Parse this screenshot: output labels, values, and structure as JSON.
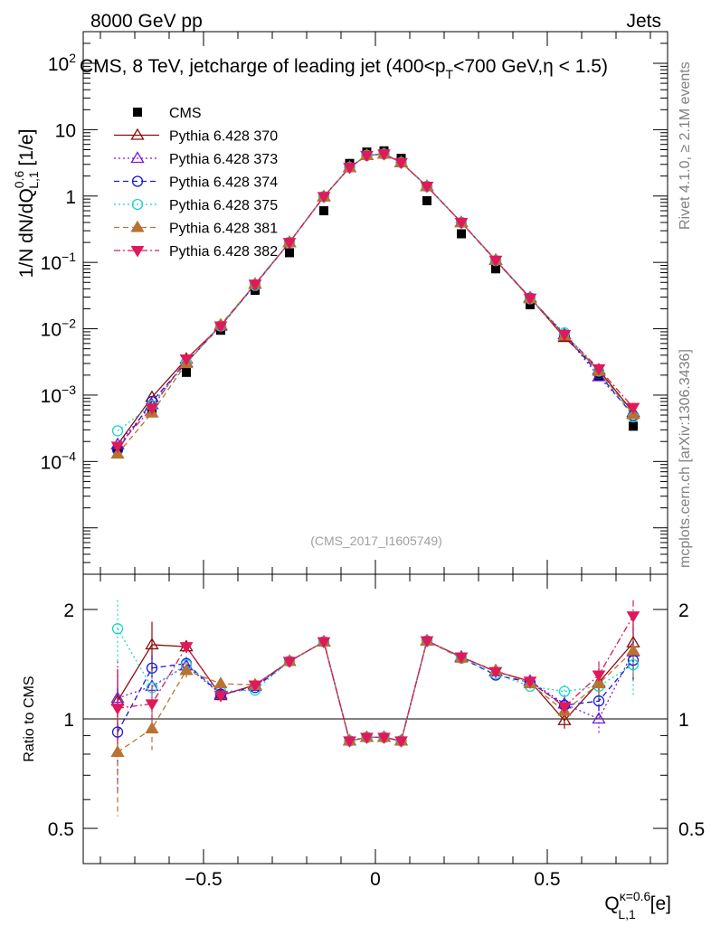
{
  "header": {
    "energy": "8000 GeV pp",
    "process": "Jets",
    "title": "CMS, 8 TeV, jetcharge of leading jet (400<p_T<700 GeV,η < 1.5)",
    "analysis_id": "(CMS_2017_I1605749)",
    "side_rivet": "Rivet 4.1.0, ≥ 2.1M events",
    "side_mcplots": "mcplots.cern.ch [arXiv:1306.3436]"
  },
  "colors": {
    "CMS": "#000000",
    "p370": "#8b0d0d",
    "p373": "#7b18d6",
    "p374": "#1a1ad2",
    "p375": "#1ad6c4",
    "p381": "#b87333",
    "p382": "#e0195a"
  },
  "chart_data": [
    {
      "type": "scatter",
      "panel": "main",
      "yscale": "log",
      "ylabel": "1/N dN/dQ^{0.6}_{L,1} [1/e]",
      "xlabel": "",
      "xlim": [
        -0.85,
        0.85
      ],
      "ylim": [
        2e-06,
        300
      ],
      "yticks": [
        {
          "value": 0.0001,
          "label": "10^-4"
        },
        {
          "value": 0.001,
          "label": "10^-3"
        },
        {
          "value": 0.01,
          "label": "10^-2"
        },
        {
          "value": 0.1,
          "label": "10^-1"
        },
        {
          "value": 1,
          "label": "1"
        },
        {
          "value": 10,
          "label": "10"
        },
        {
          "value": 100,
          "label": "10^2"
        }
      ],
      "x": [
        -0.75,
        -0.65,
        -0.55,
        -0.45,
        -0.35,
        -0.25,
        -0.15,
        -0.075,
        -0.025,
        0.025,
        0.075,
        0.15,
        0.25,
        0.35,
        0.45,
        0.55,
        0.65,
        0.75
      ],
      "legend_position": "top-left",
      "series": [
        {
          "name": "CMS",
          "key": "CMS",
          "marker": "square",
          "line": "none",
          "values": [
            0.00016,
            0.00058,
            0.0022,
            0.0095,
            0.038,
            0.14,
            0.6,
            3.1,
            4.6,
            4.8,
            3.7,
            0.85,
            0.27,
            0.08,
            0.023,
            0.0075,
            0.0019,
            0.00034
          ]
        },
        {
          "name": "Pythia 6.428 370",
          "key": "p370",
          "marker": "triangle-open",
          "line": "solid",
          "values": [
            0.00018,
            0.00093,
            0.0035,
            0.011,
            0.047,
            0.2,
            0.98,
            2.7,
            4.1,
            4.3,
            3.2,
            1.4,
            0.4,
            0.108,
            0.0293,
            0.0074,
            0.0024,
            0.00055
          ]
        },
        {
          "name": "Pythia 6.428 373",
          "key": "p373",
          "marker": "triangle-open",
          "line": "dotted",
          "values": [
            0.00018,
            0.00072,
            0.0031,
            0.011,
            0.047,
            0.2,
            0.98,
            2.7,
            4.1,
            4.3,
            3.2,
            1.4,
            0.4,
            0.108,
            0.0292,
            0.0082,
            0.0019,
            0.00052
          ]
        },
        {
          "name": "Pythia 6.428 374",
          "key": "p374",
          "marker": "circle-open",
          "line": "dashed",
          "values": [
            0.00015,
            0.0008,
            0.0031,
            0.011,
            0.046,
            0.2,
            0.98,
            2.7,
            4.1,
            4.3,
            3.2,
            1.4,
            0.4,
            0.106,
            0.029,
            0.0081,
            0.0021,
            0.00049
          ]
        },
        {
          "name": "Pythia 6.428 375",
          "key": "p375",
          "marker": "circle-open",
          "line": "dotted",
          "values": [
            0.00029,
            0.0007,
            0.0031,
            0.011,
            0.045,
            0.2,
            0.98,
            2.7,
            4.1,
            4.3,
            3.2,
            1.4,
            0.4,
            0.107,
            0.0283,
            0.0087,
            0.0023,
            0.00047
          ]
        },
        {
          "name": "Pythia 6.428 381",
          "key": "p381",
          "marker": "triangle-filled",
          "line": "dashed",
          "values": [
            0.00013,
            0.00054,
            0.003,
            0.0115,
            0.047,
            0.2,
            0.98,
            2.7,
            4.1,
            4.3,
            3.2,
            1.4,
            0.4,
            0.108,
            0.0285,
            0.0078,
            0.0023,
            0.00051
          ]
        },
        {
          "name": "Pythia 6.428 382",
          "key": "p382",
          "marker": "triangle-down-filled",
          "line": "dashdot",
          "values": [
            0.00017,
            0.00064,
            0.0035,
            0.011,
            0.047,
            0.2,
            0.98,
            2.7,
            4.1,
            4.3,
            3.2,
            1.4,
            0.4,
            0.108,
            0.029,
            0.0082,
            0.0025,
            0.00065
          ]
        }
      ]
    },
    {
      "type": "line",
      "panel": "ratio",
      "yscale": "log",
      "ylabel": "Ratio to CMS",
      "xlabel": "Q^{κ=0.6}_{L,1} [e]",
      "xlim": [
        -0.85,
        0.85
      ],
      "ylim": [
        0.4,
        2.5
      ],
      "xticks": [
        {
          "value": -0.5,
          "label": "−0.5"
        },
        {
          "value": 0,
          "label": "0"
        },
        {
          "value": 0.5,
          "label": "0.5"
        }
      ],
      "yticks": [
        {
          "value": 0.5,
          "label": "0.5"
        },
        {
          "value": 1,
          "label": "1"
        },
        {
          "value": 2,
          "label": "2"
        }
      ],
      "reference_line": 1,
      "x": [
        -0.75,
        -0.65,
        -0.55,
        -0.45,
        -0.35,
        -0.25,
        -0.15,
        -0.075,
        -0.025,
        0.025,
        0.075,
        0.15,
        0.25,
        0.35,
        0.45,
        0.55,
        0.65,
        0.75
      ],
      "series": [
        {
          "name": "Pythia 6.428 370",
          "key": "p370",
          "marker": "triangle-open",
          "line": "solid",
          "values": [
            1.12,
            1.6,
            1.58,
            1.16,
            1.24,
            1.44,
            1.63,
            0.87,
            0.89,
            0.89,
            0.87,
            1.64,
            1.48,
            1.35,
            1.27,
            0.99,
            1.26,
            1.62
          ],
          "err": [
            0.25,
            0.25,
            0.06,
            0.03,
            0.02,
            0.02,
            0.02,
            0.01,
            0.01,
            0.01,
            0.01,
            0.02,
            0.02,
            0.02,
            0.03,
            0.05,
            0.12,
            0.25
          ]
        },
        {
          "name": "Pythia 6.428 373",
          "key": "p373",
          "marker": "triangle-open",
          "line": "dotted",
          "values": [
            1.14,
            1.23,
            1.4,
            1.17,
            1.23,
            1.44,
            1.63,
            0.87,
            0.89,
            0.89,
            0.87,
            1.64,
            1.48,
            1.35,
            1.27,
            1.1,
            1.0,
            1.53
          ],
          "err": [
            0.3,
            0.12,
            0.06,
            0.03,
            0.02,
            0.02,
            0.02,
            0.01,
            0.01,
            0.01,
            0.01,
            0.02,
            0.02,
            0.02,
            0.03,
            0.05,
            0.1,
            0.25
          ]
        },
        {
          "name": "Pythia 6.428 374",
          "key": "p374",
          "marker": "circle-open",
          "line": "dashed",
          "values": [
            0.92,
            1.38,
            1.42,
            1.17,
            1.22,
            1.44,
            1.63,
            0.87,
            0.89,
            0.89,
            0.87,
            1.64,
            1.47,
            1.32,
            1.26,
            1.09,
            1.12,
            1.45
          ],
          "err": [
            0.3,
            0.12,
            0.06,
            0.03,
            0.02,
            0.02,
            0.02,
            0.01,
            0.01,
            0.01,
            0.01,
            0.02,
            0.02,
            0.02,
            0.03,
            0.05,
            0.1,
            0.2
          ]
        },
        {
          "name": "Pythia 6.428 375",
          "key": "p375",
          "marker": "circle-open",
          "line": "dotted",
          "values": [
            1.77,
            1.22,
            1.41,
            1.19,
            1.2,
            1.44,
            1.63,
            0.87,
            0.89,
            0.89,
            0.87,
            1.64,
            1.47,
            1.33,
            1.23,
            1.19,
            1.23,
            1.41
          ],
          "err": [
            0.35,
            0.12,
            0.06,
            0.03,
            0.02,
            0.02,
            0.02,
            0.01,
            0.01,
            0.01,
            0.01,
            0.02,
            0.02,
            0.02,
            0.03,
            0.05,
            0.1,
            0.25
          ]
        },
        {
          "name": "Pythia 6.428 381",
          "key": "p381",
          "marker": "triangle-filled",
          "line": "dashed",
          "values": [
            0.81,
            0.94,
            1.36,
            1.25,
            1.24,
            1.44,
            1.63,
            0.87,
            0.89,
            0.89,
            0.87,
            1.64,
            1.47,
            1.36,
            1.25,
            1.05,
            1.25,
            1.54
          ],
          "err": [
            0.27,
            0.12,
            0.06,
            0.03,
            0.02,
            0.02,
            0.02,
            0.01,
            0.01,
            0.01,
            0.01,
            0.02,
            0.02,
            0.02,
            0.03,
            0.05,
            0.1,
            0.25
          ]
        },
        {
          "name": "Pythia 6.428 382",
          "key": "p382",
          "marker": "triangle-down-filled",
          "line": "dashdot",
          "values": [
            1.07,
            1.1,
            1.58,
            1.16,
            1.24,
            1.44,
            1.63,
            0.87,
            0.89,
            0.89,
            0.87,
            1.64,
            1.48,
            1.35,
            1.27,
            1.08,
            1.32,
            1.92
          ],
          "err": [
            0.3,
            0.12,
            0.06,
            0.03,
            0.02,
            0.02,
            0.02,
            0.01,
            0.01,
            0.01,
            0.01,
            0.02,
            0.02,
            0.02,
            0.03,
            0.05,
            0.12,
            0.2
          ]
        }
      ]
    }
  ]
}
